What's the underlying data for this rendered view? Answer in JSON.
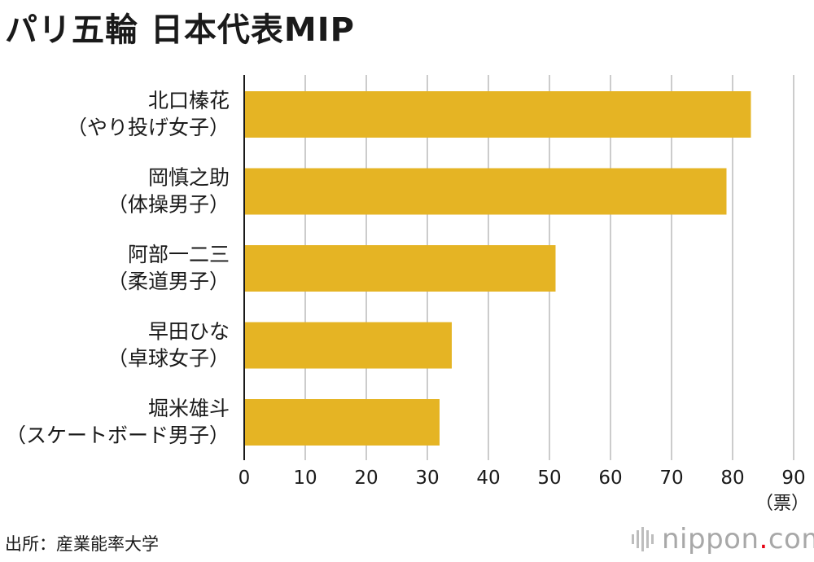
{
  "title": "パリ五輪 日本代表MIP",
  "source": "出所：産業能率大学",
  "logo": {
    "name": "nippon",
    "dot": ".",
    "suffix": "com",
    "accent": "#e60012"
  },
  "colors": {
    "bar": "#e5b424",
    "grid": "#cccccc",
    "axis": "#1a1a1a",
    "text": "#1a1a1a"
  },
  "chart_data": {
    "type": "bar",
    "orientation": "horizontal",
    "title": "パリ五輪 日本代表MIP",
    "categories": [
      {
        "name": "北口榛花",
        "sub": "（やり投げ女子）"
      },
      {
        "name": "岡慎之助",
        "sub": "（体操男子）"
      },
      {
        "name": "阿部一二三",
        "sub": "（柔道男子）"
      },
      {
        "name": "早田ひな",
        "sub": "（卓球女子）"
      },
      {
        "name": "堀米雄斗",
        "sub": "（スケートボード男子）"
      }
    ],
    "values": [
      83,
      79,
      51,
      34,
      32
    ],
    "xlabel": "（票）",
    "xlim": [
      0,
      90
    ],
    "xticks": [
      0,
      10,
      20,
      30,
      40,
      50,
      60,
      70,
      80,
      90
    ],
    "grid": true,
    "legend": "none"
  }
}
